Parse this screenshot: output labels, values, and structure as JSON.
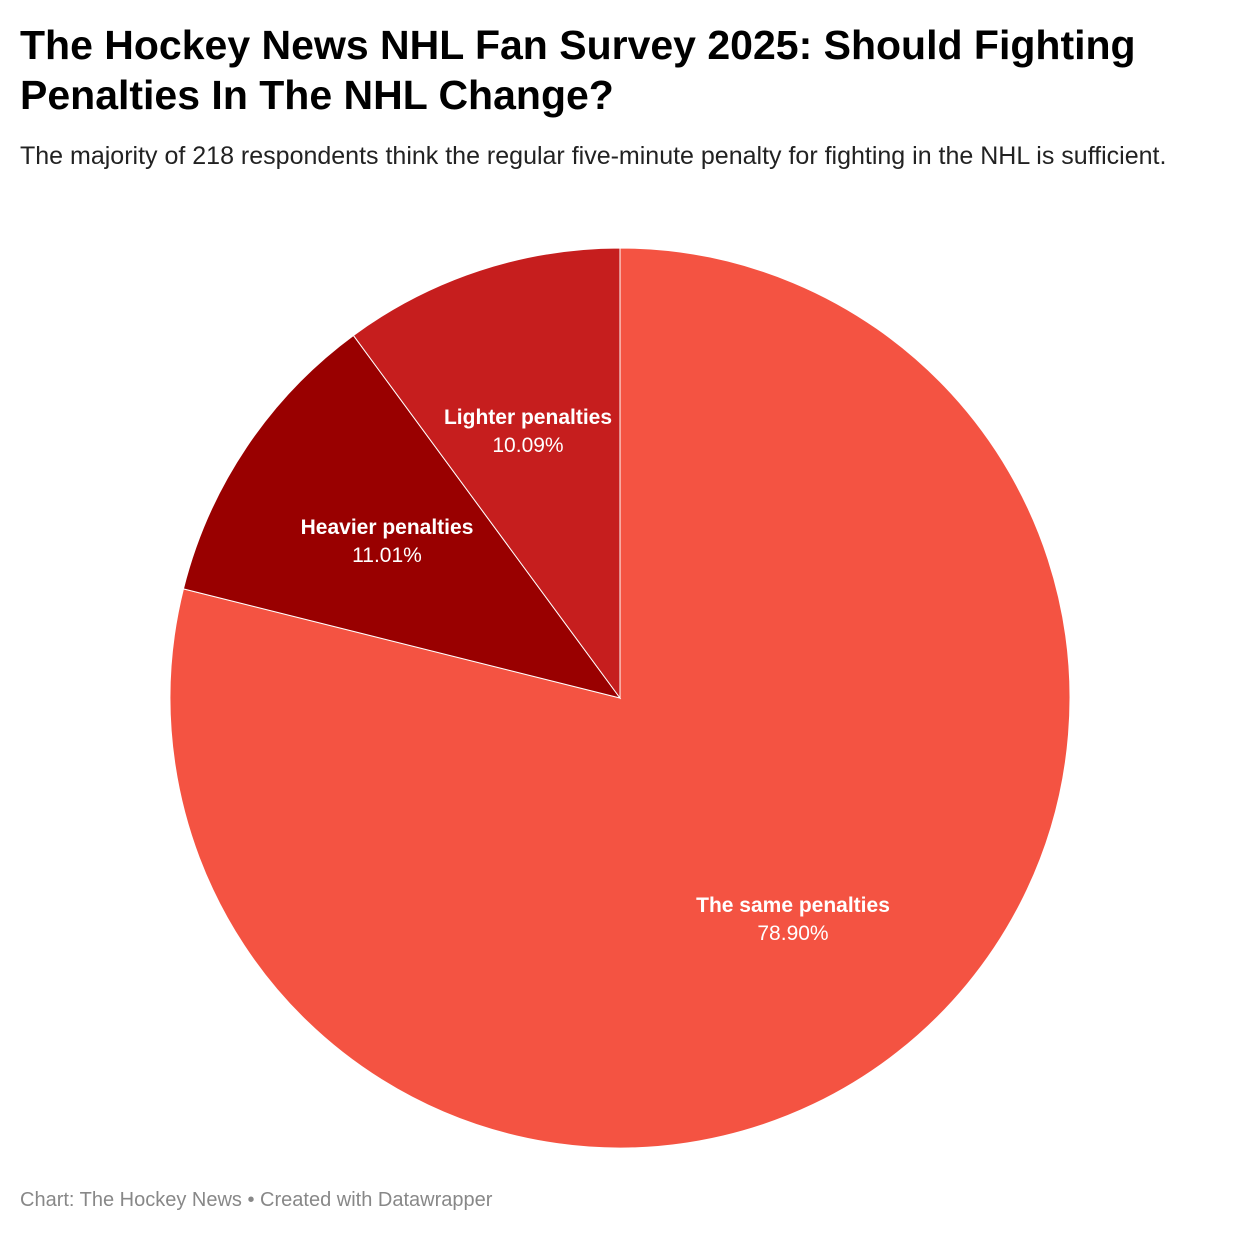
{
  "chart_data": {
    "type": "pie",
    "title": "The Hockey News NHL Fan Survey 2025: Should Fighting Penalties In The NHL Change?",
    "subtitle": "The majority of 218 respondents think the regular five-minute penalty for fighting in the NHL is sufficient.",
    "slices": [
      {
        "label": "The same penalties",
        "value": 78.9,
        "value_label": "78.90%",
        "color": "#f45342"
      },
      {
        "label": "Heavier penalties",
        "value": 11.01,
        "value_label": "11.01%",
        "color": "#990000"
      },
      {
        "label": "Lighter penalties",
        "value": 10.09,
        "value_label": "10.09%",
        "color": "#c61e1e"
      }
    ],
    "start": "12 o'clock",
    "direction": "clockwise"
  },
  "footer": {
    "credit": "Chart: The Hockey News • Created with Datawrapper"
  }
}
